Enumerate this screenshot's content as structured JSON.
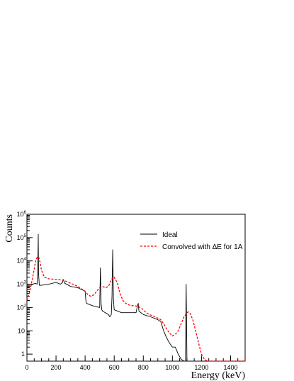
{
  "chart_data": {
    "type": "line",
    "xlabel": "Energy (keV)",
    "ylabel": "Counts",
    "xlim": [
      0,
      1500
    ],
    "ylim": [
      0.5,
      1000000
    ],
    "yscale": "log",
    "x_ticks": [
      "0",
      "200",
      "400",
      "600",
      "800",
      "1000",
      "1200",
      "1400"
    ],
    "y_ticks": [
      {
        "base": "1",
        "exp": ""
      },
      {
        "base": "10",
        "exp": ""
      },
      {
        "base": "10",
        "exp": "2"
      },
      {
        "base": "10",
        "exp": "3"
      },
      {
        "base": "10",
        "exp": "4"
      },
      {
        "base": "10",
        "exp": "5"
      },
      {
        "base": "10",
        "exp": "6"
      }
    ],
    "legend_position": "top-right",
    "series": [
      {
        "name": "Ideal",
        "color": "#000000",
        "style": "solid",
        "x": [
          0,
          20,
          40,
          60,
          70,
          75,
          78,
          80,
          85,
          100,
          150,
          200,
          230,
          245,
          250,
          260,
          300,
          350,
          400,
          405,
          410,
          450,
          500,
          505,
          510,
          515,
          520,
          560,
          570,
          580,
          585,
          590,
          595,
          600,
          650,
          700,
          750,
          760,
          765,
          770,
          800,
          850,
          900,
          920,
          940,
          960,
          980,
          1000,
          1020,
          1040,
          1060,
          1080,
          1090,
          1095,
          1100,
          1105,
          1110,
          1130,
          1150,
          1200,
          1500
        ],
        "y": [
          700,
          800,
          1000,
          1100,
          1000,
          5000,
          140000,
          3000,
          900,
          900,
          1000,
          1200,
          1000,
          1200,
          1600,
          1100,
          800,
          700,
          500,
          200,
          150,
          120,
          100,
          5000,
          150,
          80,
          70,
          50,
          40,
          50,
          300,
          30000,
          200,
          80,
          60,
          60,
          60,
          120,
          150,
          70,
          50,
          40,
          30,
          25,
          10,
          5,
          3,
          2,
          2,
          1,
          0.6,
          0.5,
          0.5,
          1000,
          0.5,
          0.5,
          0.5,
          0.5,
          0.5,
          0.5,
          0.5
        ]
      },
      {
        "name": "Convolved with ΔE for 1A",
        "color": "#ff0000",
        "style": "dashed",
        "x": [
          0,
          20,
          40,
          60,
          70,
          80,
          90,
          100,
          120,
          150,
          200,
          250,
          300,
          350,
          400,
          420,
          440,
          460,
          480,
          500,
          520,
          540,
          560,
          580,
          590,
          600,
          620,
          640,
          660,
          680,
          700,
          720,
          740,
          760,
          780,
          800,
          820,
          840,
          860,
          880,
          900,
          920,
          940,
          960,
          980,
          1000,
          1020,
          1040,
          1060,
          1080,
          1100,
          1110,
          1120,
          1140,
          1160,
          1180,
          1200,
          1220,
          1240,
          1260,
          1300,
          1500
        ],
        "y": [
          200,
          500,
          2000,
          10000,
          14000,
          15000,
          9000,
          4000,
          2000,
          1700,
          1600,
          1500,
          1100,
          800,
          500,
          350,
          300,
          350,
          500,
          700,
          800,
          700,
          800,
          1500,
          2000,
          2000,
          1200,
          400,
          200,
          150,
          130,
          120,
          120,
          110,
          100,
          80,
          60,
          50,
          45,
          40,
          35,
          30,
          20,
          12,
          8,
          6,
          7,
          10,
          20,
          40,
          60,
          65,
          60,
          30,
          10,
          3,
          1,
          0.6,
          0.5,
          0.5,
          0.5,
          0.5
        ]
      }
    ]
  }
}
